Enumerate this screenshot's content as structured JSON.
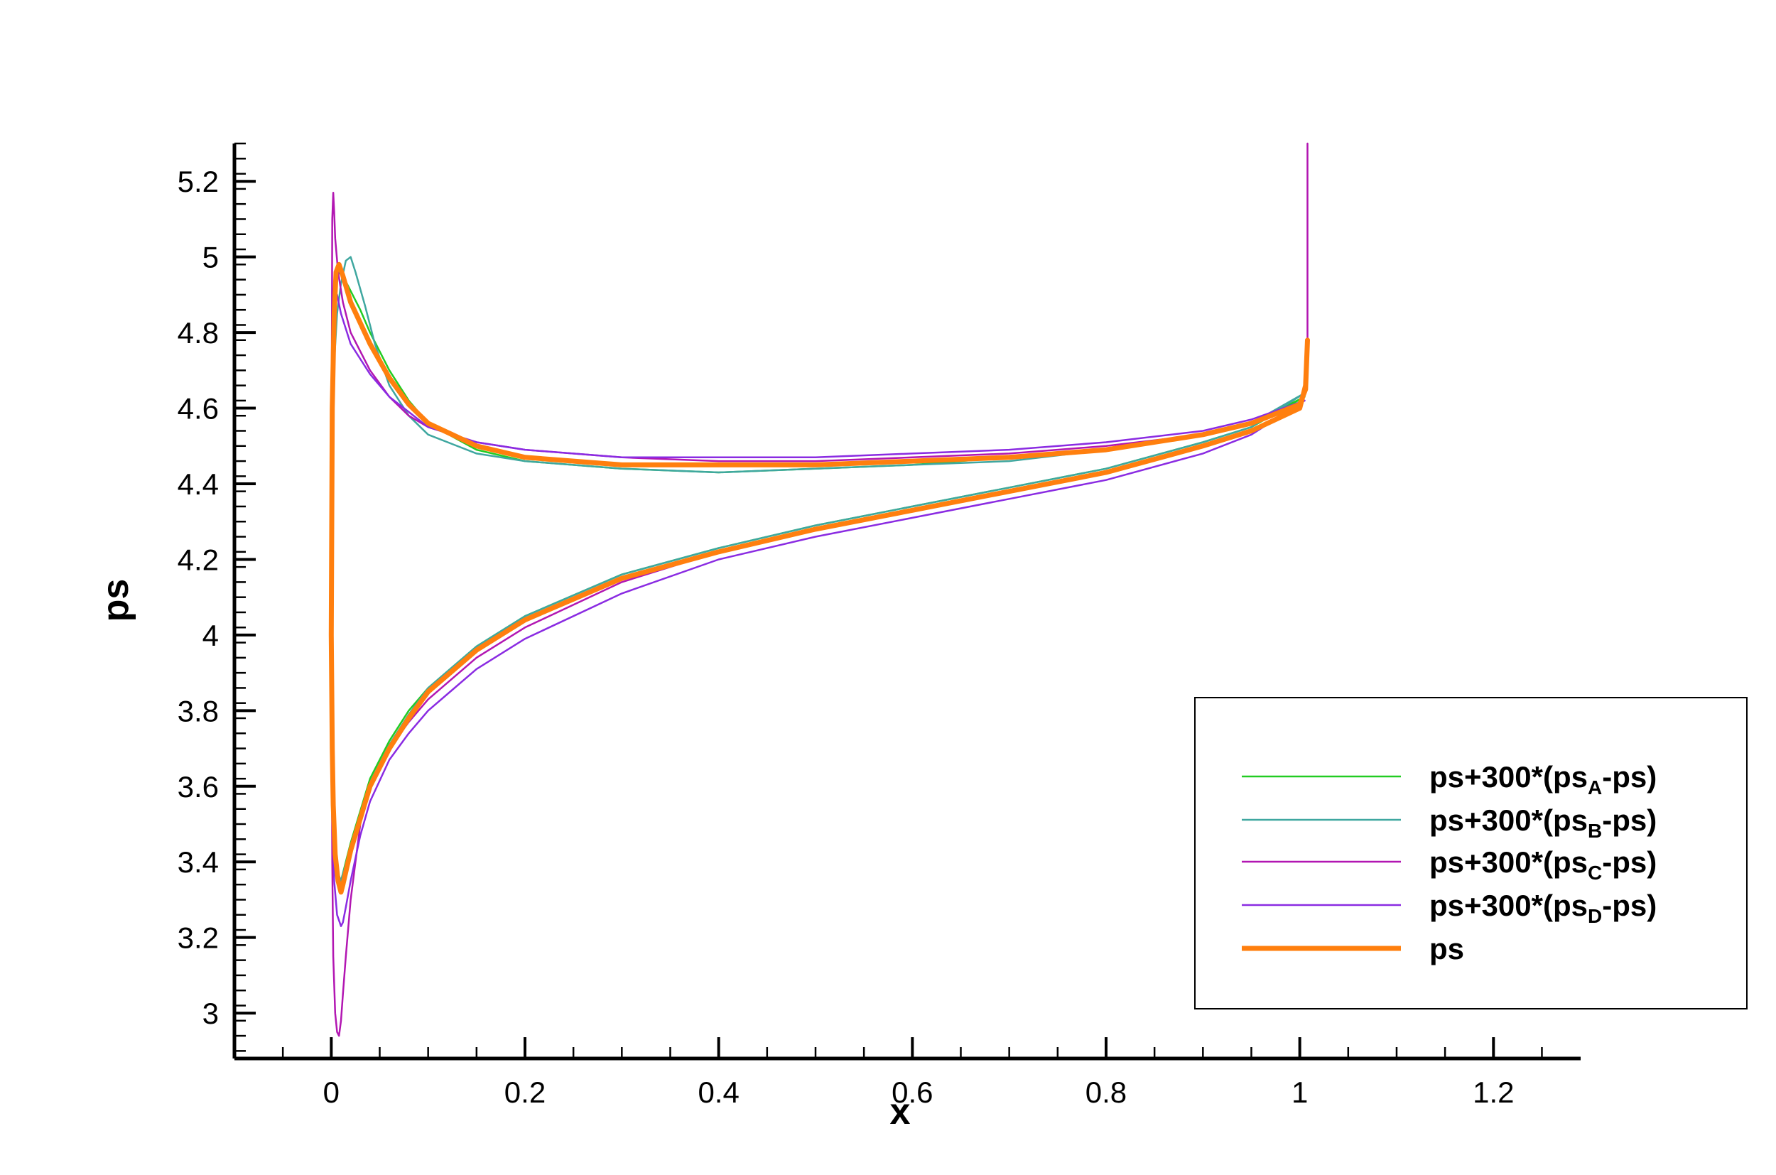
{
  "chart_data": {
    "type": "line",
    "title": "",
    "xlabel": "x",
    "ylabel": "ps",
    "xlim": [
      -0.1,
      1.29
    ],
    "ylim": [
      2.88,
      5.3
    ],
    "x_ticks": [
      0,
      0.2,
      0.4,
      0.6,
      0.8,
      1,
      1.2
    ],
    "x_tick_labels": [
      "0",
      "0.2",
      "0.4",
      "0.6",
      "0.8",
      "1",
      "1.2"
    ],
    "y_ticks": [
      3,
      3.2,
      3.4,
      3.6,
      3.8,
      4,
      4.2,
      4.4,
      4.6,
      4.8,
      5,
      5.2
    ],
    "y_tick_labels": [
      "3",
      "3.2",
      "3.4",
      "3.6",
      "3.8",
      "4",
      "4.2",
      "4.4",
      "4.6",
      "4.8",
      "5",
      "5.2"
    ],
    "grid": false,
    "legend_position": "bottom-right",
    "series": [
      {
        "name": "ps+300*(ps_A-ps)",
        "legend_main": "ps+300*(ps",
        "legend_sub": "A",
        "legend_tail": "-ps)",
        "color": "#22cc22",
        "width": 2.5,
        "x": [
          1.005,
          0.95,
          0.9,
          0.8,
          0.7,
          0.6,
          0.5,
          0.4,
          0.3,
          0.2,
          0.15,
          0.1,
          0.08,
          0.06,
          0.04,
          0.03,
          0.02,
          0.012,
          0.007,
          0.004,
          0.002,
          0.001,
          0.0005,
          0.0,
          0.001,
          0.002,
          0.004,
          0.007,
          0.01,
          0.02,
          0.04,
          0.06,
          0.08,
          0.1,
          0.15,
          0.2,
          0.3,
          0.4,
          0.5,
          0.6,
          0.7,
          0.8,
          0.9,
          0.95,
          1.005
        ],
        "y": [
          4.63,
          4.56,
          4.53,
          4.49,
          4.47,
          4.45,
          4.44,
          4.43,
          4.44,
          4.46,
          4.49,
          4.56,
          4.62,
          4.7,
          4.8,
          4.86,
          4.91,
          4.95,
          4.96,
          4.9,
          4.8,
          4.65,
          4.4,
          4.0,
          3.75,
          3.6,
          3.45,
          3.36,
          3.35,
          3.45,
          3.62,
          3.72,
          3.8,
          3.86,
          3.97,
          4.05,
          4.16,
          4.23,
          4.29,
          4.34,
          4.39,
          4.44,
          4.51,
          4.55,
          4.63
        ]
      },
      {
        "name": "ps+300*(ps_B-ps)",
        "legend_main": "ps+300*(ps",
        "legend_sub": "B",
        "legend_tail": "-ps)",
        "color": "#3fa7a0",
        "width": 2.5,
        "x": [
          1.005,
          0.95,
          0.9,
          0.8,
          0.7,
          0.6,
          0.5,
          0.4,
          0.3,
          0.2,
          0.15,
          0.1,
          0.08,
          0.06,
          0.045,
          0.035,
          0.025,
          0.02,
          0.015,
          0.01,
          0.006,
          0.003,
          0.001,
          0.0,
          0.001,
          0.002,
          0.004,
          0.007,
          0.01,
          0.02,
          0.04,
          0.06,
          0.08,
          0.1,
          0.15,
          0.2,
          0.3,
          0.4,
          0.5,
          0.6,
          0.7,
          0.8,
          0.9,
          0.95,
          1.005
        ],
        "y": [
          4.64,
          4.56,
          4.53,
          4.49,
          4.46,
          4.45,
          4.44,
          4.43,
          4.44,
          4.46,
          4.48,
          4.53,
          4.58,
          4.66,
          4.77,
          4.87,
          4.96,
          5.0,
          4.99,
          4.93,
          4.85,
          4.72,
          4.4,
          4.0,
          3.75,
          3.6,
          3.45,
          3.37,
          3.35,
          3.44,
          3.61,
          3.71,
          3.79,
          3.86,
          3.97,
          4.05,
          4.16,
          4.23,
          4.29,
          4.34,
          4.39,
          4.44,
          4.51,
          4.55,
          4.64
        ]
      },
      {
        "name": "ps+300*(ps_C-ps)",
        "legend_main": "ps+300*(ps",
        "legend_sub": "C",
        "legend_tail": "-ps)",
        "color": "#b216b2",
        "width": 2.5,
        "x": [
          1.008,
          1.008,
          1.008,
          1.006,
          1.0,
          0.95,
          0.9,
          0.8,
          0.7,
          0.6,
          0.5,
          0.4,
          0.3,
          0.2,
          0.15,
          0.1,
          0.08,
          0.06,
          0.04,
          0.02,
          0.012,
          0.007,
          0.004,
          0.003,
          0.002,
          0.001,
          0.0005,
          0.0,
          0.001,
          0.002,
          0.004,
          0.006,
          0.008,
          0.01,
          0.012,
          0.015,
          0.02,
          0.03,
          0.04,
          0.06,
          0.08,
          0.1,
          0.15,
          0.2,
          0.3,
          0.4,
          0.5,
          0.6,
          0.7,
          0.8,
          0.9,
          0.95,
          1.0,
          1.006
        ],
        "y": [
          5.3,
          5.0,
          4.7,
          4.64,
          4.61,
          4.56,
          4.53,
          4.5,
          4.48,
          4.47,
          4.46,
          4.46,
          4.47,
          4.49,
          4.51,
          4.55,
          4.58,
          4.63,
          4.7,
          4.8,
          4.88,
          4.96,
          5.05,
          5.12,
          5.17,
          5.1,
          4.7,
          4.0,
          3.4,
          3.15,
          3.0,
          2.95,
          2.94,
          2.98,
          3.05,
          3.15,
          3.3,
          3.5,
          3.6,
          3.7,
          3.77,
          3.83,
          3.94,
          4.02,
          4.14,
          4.22,
          4.28,
          4.33,
          4.38,
          4.43,
          4.5,
          4.54,
          4.6,
          4.64
        ]
      },
      {
        "name": "ps+300*(ps_D-ps)",
        "legend_main": "ps+300*(ps",
        "legend_sub": "D",
        "legend_tail": "-ps)",
        "color": "#8a2be2",
        "width": 2.5,
        "x": [
          1.005,
          0.95,
          0.9,
          0.8,
          0.7,
          0.6,
          0.5,
          0.4,
          0.3,
          0.2,
          0.15,
          0.1,
          0.08,
          0.06,
          0.04,
          0.02,
          0.01,
          0.006,
          0.003,
          0.001,
          0.0,
          0.001,
          0.003,
          0.006,
          0.01,
          0.012,
          0.015,
          0.02,
          0.03,
          0.04,
          0.06,
          0.08,
          0.1,
          0.15,
          0.2,
          0.3,
          0.4,
          0.5,
          0.6,
          0.7,
          0.8,
          0.9,
          0.95,
          1.005
        ],
        "y": [
          4.62,
          4.57,
          4.54,
          4.51,
          4.49,
          4.48,
          4.47,
          4.47,
          4.47,
          4.49,
          4.51,
          4.55,
          4.59,
          4.63,
          4.69,
          4.77,
          4.85,
          4.9,
          4.88,
          4.6,
          4.0,
          3.55,
          3.35,
          3.26,
          3.23,
          3.24,
          3.28,
          3.35,
          3.47,
          3.56,
          3.67,
          3.74,
          3.8,
          3.91,
          3.99,
          4.11,
          4.2,
          4.26,
          4.31,
          4.36,
          4.41,
          4.48,
          4.53,
          4.62
        ]
      },
      {
        "name": "ps",
        "legend_main": "ps",
        "legend_sub": "",
        "legend_tail": "",
        "color": "#ff7f0e",
        "width": 7,
        "x": [
          1.008,
          1.006,
          1.0,
          0.95,
          0.9,
          0.8,
          0.7,
          0.6,
          0.5,
          0.4,
          0.3,
          0.2,
          0.15,
          0.1,
          0.08,
          0.06,
          0.04,
          0.02,
          0.012,
          0.008,
          0.005,
          0.003,
          0.001,
          0.0,
          0.001,
          0.002,
          0.004,
          0.007,
          0.01,
          0.012,
          0.02,
          0.04,
          0.06,
          0.08,
          0.1,
          0.15,
          0.2,
          0.3,
          0.4,
          0.5,
          0.6,
          0.7,
          0.8,
          0.9,
          0.95,
          1.0,
          1.006,
          1.008
        ],
        "y": [
          4.78,
          4.65,
          4.61,
          4.56,
          4.53,
          4.49,
          4.47,
          4.46,
          4.45,
          4.45,
          4.45,
          4.47,
          4.5,
          4.56,
          4.61,
          4.68,
          4.77,
          4.88,
          4.95,
          4.98,
          4.96,
          4.85,
          4.6,
          4.0,
          3.7,
          3.55,
          3.42,
          3.35,
          3.32,
          3.34,
          3.43,
          3.6,
          3.7,
          3.78,
          3.85,
          3.96,
          4.04,
          4.15,
          4.22,
          4.28,
          4.33,
          4.38,
          4.43,
          4.5,
          4.54,
          4.6,
          4.66,
          4.78
        ]
      }
    ]
  }
}
